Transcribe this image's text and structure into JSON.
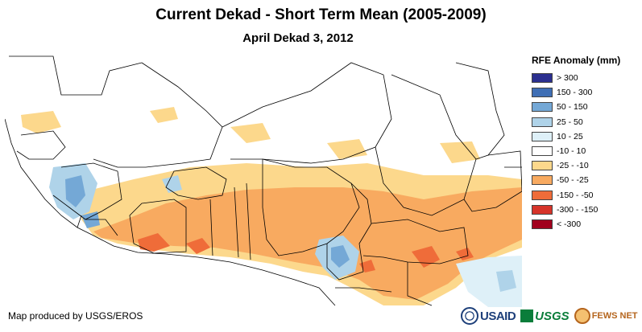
{
  "title": "Current Dekad - Short Term Mean (2005-2009)",
  "subtitle": "April Dekad 3, 2012",
  "credit": "Map produced by USGS/EROS",
  "legend": {
    "title": "RFE Anomaly (mm)",
    "items": [
      {
        "label": "> 300",
        "color": "#2b2f8f"
      },
      {
        "label": "150 - 300",
        "color": "#3f6fb5"
      },
      {
        "label": "50 - 150",
        "color": "#74a8d6"
      },
      {
        "label": "25 - 50",
        "color": "#afd3e9"
      },
      {
        "label": "10 - 25",
        "color": "#def0f8"
      },
      {
        "label": "-10 - 10",
        "color": "#ffffff"
      },
      {
        "label": "-25 - -10",
        "color": "#fcd88c"
      },
      {
        "label": "-50 - -25",
        "color": "#f8aa60"
      },
      {
        "label": "-150 - -50",
        "color": "#ef6c39"
      },
      {
        "label": "-300 - -150",
        "color": "#d6342a"
      },
      {
        "label": "< -300",
        "color": "#a1001d"
      }
    ]
  },
  "logos": {
    "usaid": "USAID",
    "usgs": "USGS",
    "fews": "FEWS NET"
  }
}
